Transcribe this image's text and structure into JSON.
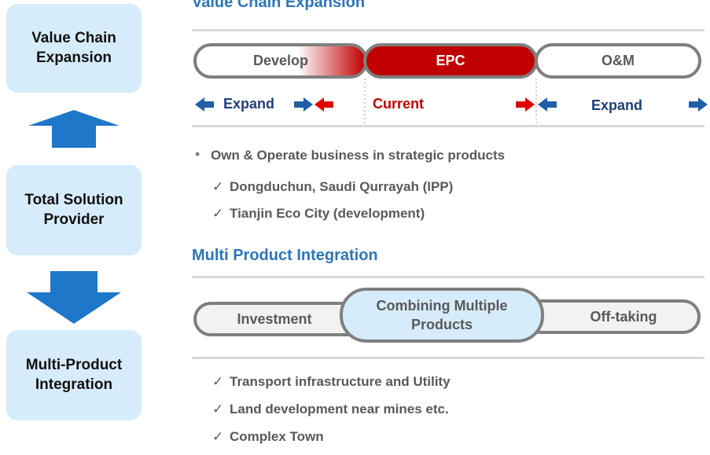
{
  "sidebar": {
    "boxes": [
      "Value Chain Expansion",
      "Total Solution Provider",
      "Multi-Product Integration"
    ]
  },
  "value_chain": {
    "title": "Value Chain Expansion",
    "stages": [
      "Develop",
      "EPC",
      "O&M"
    ],
    "flow": [
      "Expand",
      "Current",
      "Expand"
    ],
    "bullet": "Own & Operate business in strategic products",
    "checks": [
      "Dongduchun, Saudi Qurrayah (IPP)",
      "Tianjin Eco City (development)"
    ]
  },
  "multi_product": {
    "title": "Multi Product Integration",
    "stages": [
      "Investment",
      "Combining Multiple Products",
      "Off-taking"
    ],
    "checks": [
      "Transport infrastructure and Utility",
      "Land development near mines etc.",
      "Complex Town"
    ]
  }
}
